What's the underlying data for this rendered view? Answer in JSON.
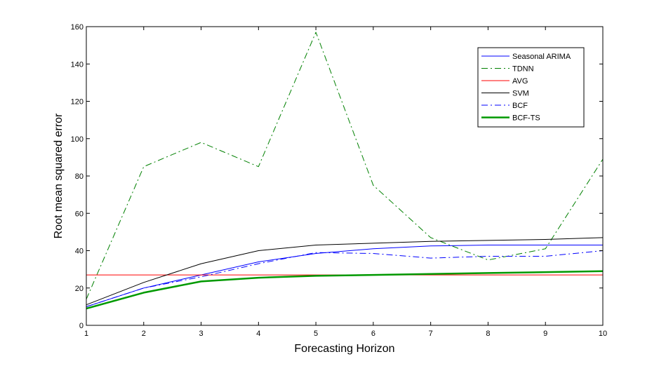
{
  "chart_data": {
    "type": "line",
    "xlabel": "Forecasting Horizon",
    "ylabel": "Root mean squared error",
    "xlim": [
      1,
      10
    ],
    "ylim": [
      0,
      160
    ],
    "xticks": [
      1,
      2,
      3,
      4,
      5,
      6,
      7,
      8,
      9,
      10
    ],
    "yticks": [
      0,
      20,
      40,
      60,
      80,
      100,
      120,
      140,
      160
    ],
    "grid": false,
    "legend_position": "top-right",
    "x": [
      1,
      2,
      3,
      4,
      5,
      6,
      7,
      8,
      9,
      10
    ],
    "series": [
      {
        "name": "Seasonal ARIMA",
        "color": "#0000ff",
        "style": "solid",
        "width": 1,
        "values": [
          10,
          20,
          27,
          34,
          38.5,
          41,
          42.5,
          43,
          43,
          43
        ]
      },
      {
        "name": "TDNN",
        "color": "#008000",
        "style": "dashdot",
        "width": 1,
        "values": [
          14,
          85,
          98,
          85,
          157,
          75,
          47,
          35,
          41,
          89
        ]
      },
      {
        "name": "AVG",
        "color": "#ff0000",
        "style": "solid",
        "width": 1,
        "values": [
          27,
          27,
          27,
          27,
          27,
          27,
          27,
          27,
          27,
          27
        ]
      },
      {
        "name": "SVM",
        "color": "#000000",
        "style": "solid",
        "width": 1,
        "values": [
          11,
          23,
          33,
          40,
          43,
          44,
          45,
          45.5,
          46,
          47
        ]
      },
      {
        "name": "BCF",
        "color": "#0000ff",
        "style": "dashdot",
        "width": 1,
        "values": [
          10,
          20,
          26,
          33,
          39,
          38.5,
          36,
          37,
          37,
          40
        ]
      },
      {
        "name": "BCF-TS",
        "color": "#009900",
        "style": "solid",
        "width": 2.5,
        "values": [
          9,
          17.5,
          23.5,
          25.5,
          26.5,
          27,
          27.5,
          28,
          28.5,
          29
        ]
      }
    ]
  }
}
